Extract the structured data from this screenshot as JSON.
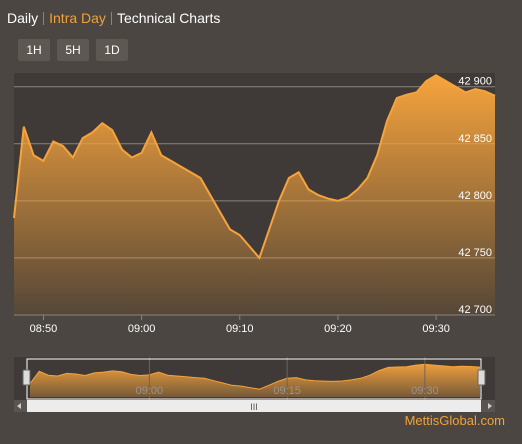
{
  "tabs": [
    {
      "label": "Daily",
      "active": false
    },
    {
      "label": "Intra Day",
      "active": true
    },
    {
      "label": "Technical Charts",
      "active": false
    }
  ],
  "ranges": [
    "1H",
    "5H",
    "1D"
  ],
  "watermark": "MettisGlobal.com",
  "colors": {
    "accent": "#f0a23a",
    "line": "#f6a33c",
    "plot_bg": "#3f3a37",
    "grid": "#8a8480",
    "text": "#ffffff",
    "navigator_text": "#9a9490"
  },
  "chart_data": {
    "type": "area",
    "title": "",
    "xlabel": "",
    "ylabel": "",
    "x_ticks": [
      "08:50",
      "09:00",
      "09:10",
      "09:20",
      "09:30"
    ],
    "y_ticks": [
      "42 700",
      "42 750",
      "42 800",
      "42 850",
      "42 900"
    ],
    "ylim": [
      42700,
      42912
    ],
    "xlim": [
      "08:47",
      "09:36"
    ],
    "grid": "horizontal",
    "legend": "none",
    "series": [
      {
        "x": [
          "08:47",
          "08:48",
          "08:49",
          "08:50",
          "08:51",
          "08:52",
          "08:53",
          "08:54",
          "08:55",
          "08:56",
          "08:57",
          "08:58",
          "08:59",
          "09:00",
          "09:01",
          "09:02",
          "09:03",
          "09:04",
          "09:05",
          "09:06",
          "09:07",
          "09:08",
          "09:09",
          "09:10",
          "09:11",
          "09:12",
          "09:13",
          "09:14",
          "09:15",
          "09:16",
          "09:17",
          "09:18",
          "09:19",
          "09:20",
          "09:21",
          "09:22",
          "09:23",
          "09:24",
          "09:25",
          "09:26",
          "09:27",
          "09:28",
          "09:29",
          "09:30",
          "09:31",
          "09:32",
          "09:33",
          "09:34",
          "09:35",
          "09:36"
        ],
        "values": [
          42785,
          42865,
          42840,
          42835,
          42852,
          42848,
          42838,
          42855,
          42860,
          42868,
          42862,
          42845,
          42838,
          42842,
          42860,
          42840,
          42835,
          42830,
          42825,
          42820,
          42805,
          42790,
          42775,
          42770,
          42760,
          42750,
          42775,
          42800,
          42820,
          42825,
          42810,
          42805,
          42802,
          42800,
          42803,
          42810,
          42820,
          42840,
          42870,
          42890,
          42893,
          42895,
          42905,
          42910,
          42905,
          42900,
          42895,
          42898,
          42896,
          42892
        ]
      }
    ]
  },
  "navigator": {
    "x_ticks": [
      "09:00",
      "09:15",
      "09:30"
    ],
    "scrollbar_grip": "III"
  }
}
